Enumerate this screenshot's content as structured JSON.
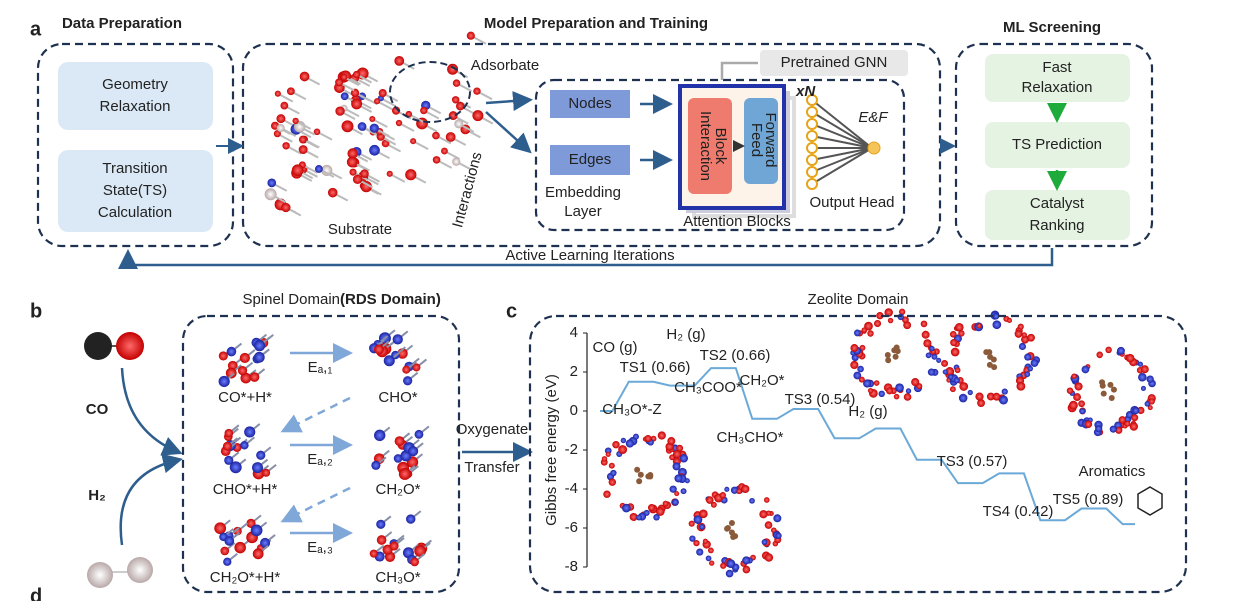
{
  "panel_a": {
    "label": "a",
    "data_preparation": {
      "title": "Data Preparation",
      "step1": [
        "Geometry",
        "Relaxation"
      ],
      "step2": [
        "Transition",
        "State(TS)",
        "Calculation"
      ]
    },
    "model": {
      "title": "Model Preparation and Training",
      "adsorbate": "Adsorbate",
      "substrate": "Substrate",
      "interactions": "Interactions",
      "pretrained": "Pretrained GNN",
      "nodes": "Nodes",
      "edges": "Edges",
      "embedding": [
        "Embedding",
        "Layer"
      ],
      "interaction_block": [
        "Interaction",
        "Block"
      ],
      "feed_forward": [
        "Feed",
        "Forward"
      ],
      "repeat": "xN",
      "attention": "Attention Blocks",
      "ef": "E&F",
      "output_head": "Output Head"
    },
    "screening": {
      "title": "ML Screening",
      "step1": [
        "Fast",
        "Relaxation"
      ],
      "step2": [
        "TS Prediction"
      ],
      "step3": [
        "Catalyst",
        "Ranking"
      ]
    },
    "loop": "Active Learning Iterations"
  },
  "panel_b": {
    "label": "b",
    "title": "Spinel Domain ",
    "title_bold": "(RDS Domain)",
    "co": "CO",
    "h2": "H₂",
    "species": [
      "CO*+H*",
      "CHO*",
      "CHO*+H*",
      "CH₂O*",
      "CH₂O*+H*",
      "CH₃O*"
    ],
    "barriers": [
      "Eₐ,₁",
      "Eₐ,₂",
      "Eₐ,₃"
    ],
    "transfer": [
      "Oxygenate",
      "Transfer"
    ]
  },
  "panel_c": {
    "label": "c",
    "title": "Zeolite Domain",
    "ylabel": "Gibbs free energy (eV)",
    "ylim": [
      -8,
      4
    ],
    "yticks": [
      -8,
      -6,
      -4,
      -2,
      0,
      2,
      4
    ],
    "values": [
      0,
      1.5,
      1.3,
      2.2,
      -0.4,
      0.1,
      -1.4,
      -0.9,
      -2.5,
      -3.7,
      -3.2,
      -5.6,
      -5.0,
      -5.8
    ],
    "annotations": [
      "CO (g)",
      "TS1 (0.66)",
      "CH₃COO*",
      "H₂ (g)",
      "TS2 (0.66)",
      "CH₃O*-Z",
      "CH₂O*",
      "TS3 (0.54)",
      "CH₃CHO*",
      "H₂ (g)",
      "TS3 (0.57)",
      "TS4 (0.42)",
      "TS5 (0.89)",
      "Aromatics"
    ]
  },
  "panel_d": {
    "label": "d"
  }
}
